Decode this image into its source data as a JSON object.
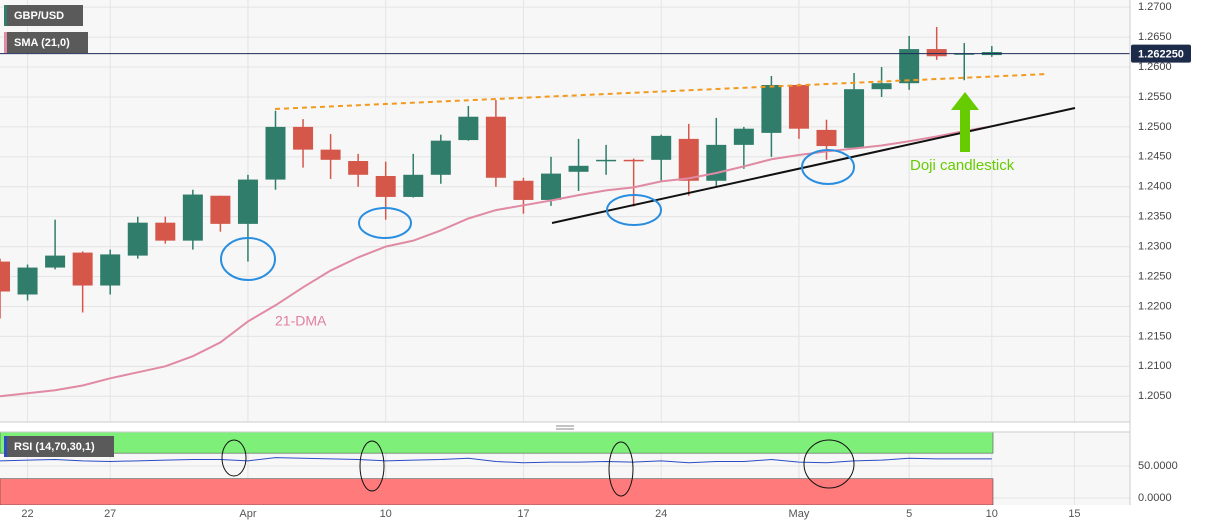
{
  "chart_data": [
    {
      "type": "candlestick",
      "legend": [
        "GBP/USD",
        "SMA (21,0)"
      ],
      "annotations": [
        "21-DMA",
        "Doji candlestick"
      ],
      "current_price": {
        "value": 1.26225,
        "label": "1.262250"
      },
      "categories": [
        null,
        "22",
        null,
        null,
        "27",
        null,
        null,
        null,
        null,
        "Apr",
        null,
        null,
        null,
        null,
        "10",
        null,
        null,
        null,
        null,
        "17",
        null,
        null,
        null,
        null,
        "24",
        null,
        null,
        null,
        null,
        "May",
        null,
        null,
        null,
        "5",
        null,
        null,
        "10",
        null,
        null,
        "15",
        null
      ],
      "open": [
        1.2275,
        1.222,
        1.2265,
        1.229,
        1.2235,
        1.2285,
        1.234,
        1.231,
        1.2385,
        1.2338,
        1.2412,
        1.25,
        1.2462,
        1.2443,
        1.2418,
        1.2383,
        1.242,
        1.2478,
        1.2517,
        1.241,
        1.2378,
        1.2425,
        1.2443,
        1.2445,
        1.2445,
        1.248,
        1.241,
        1.247,
        1.249,
        1.257,
        1.2495,
        1.2465,
        1.2563,
        1.2573,
        1.263,
        1.2622,
        1.262,
        null,
        null,
        null,
        null
      ],
      "high": [
        1.228,
        1.227,
        1.2345,
        1.2292,
        1.2295,
        1.235,
        1.235,
        1.2395,
        1.2385,
        1.242,
        1.2527,
        1.2513,
        1.2488,
        1.2455,
        1.2442,
        1.2455,
        1.2487,
        1.2535,
        1.2545,
        1.2415,
        1.245,
        1.248,
        1.247,
        1.2447,
        1.2487,
        1.2505,
        1.2515,
        1.25,
        1.2585,
        1.2572,
        1.2512,
        1.259,
        1.26,
        1.2652,
        1.2667,
        1.264,
        1.2635,
        null,
        null,
        null,
        null
      ],
      "low": [
        1.218,
        1.221,
        1.2262,
        1.219,
        1.222,
        1.228,
        1.2305,
        1.2295,
        1.2325,
        1.2275,
        1.2395,
        1.2432,
        1.2413,
        1.24,
        1.2345,
        1.2382,
        1.2405,
        1.2477,
        1.24,
        1.2355,
        1.2368,
        1.2393,
        1.242,
        1.2367,
        1.241,
        1.2385,
        1.24,
        1.243,
        1.245,
        1.248,
        1.2445,
        1.2465,
        1.255,
        1.2562,
        1.2612,
        1.2578,
        1.2617,
        null,
        null,
        null,
        null
      ],
      "close": [
        1.2225,
        1.2265,
        1.2285,
        1.2235,
        1.2287,
        1.234,
        1.231,
        1.2387,
        1.2338,
        1.2412,
        1.25,
        1.2462,
        1.2445,
        1.242,
        1.2383,
        1.242,
        1.2477,
        1.2517,
        1.2415,
        1.2378,
        1.2422,
        1.2435,
        1.2445,
        1.2443,
        1.2485,
        1.241,
        1.247,
        1.2497,
        1.257,
        1.2497,
        1.2468,
        1.2563,
        1.2573,
        1.263,
        1.2618,
        1.2623,
        1.2625,
        null,
        null,
        null,
        null
      ],
      "up_color": "#2f7d6a",
      "down_color": "#d4574a",
      "series": [
        {
          "name": "SMA (21,0)",
          "color": "#e08aa3",
          "values": [
            1.205,
            1.2055,
            1.206,
            1.2068,
            1.208,
            1.209,
            1.21,
            1.2117,
            1.214,
            1.2175,
            1.2202,
            1.2232,
            1.226,
            1.2282,
            1.23,
            1.231,
            1.2327,
            1.2347,
            1.2361,
            1.2369,
            1.2377,
            1.2386,
            1.2394,
            1.2399,
            1.2409,
            1.2414,
            1.2423,
            1.2434,
            1.2446,
            1.2453,
            1.2459,
            1.2464,
            1.2469,
            1.2476,
            1.2484,
            1.2493,
            1.2501,
            null,
            null,
            null,
            null
          ]
        }
      ],
      "ylim": [
        1.2007,
        1.2712
      ],
      "yticks": [
        {
          "value": 1.27,
          "label": "1.2700"
        },
        {
          "value": 1.265,
          "label": "1.2650"
        },
        {
          "value": 1.26,
          "label": "1.2600"
        },
        {
          "value": 1.255,
          "label": "1.2550"
        },
        {
          "value": 1.25,
          "label": "1.2500"
        },
        {
          "value": 1.245,
          "label": "1.2450"
        },
        {
          "value": 1.24,
          "label": "1.2400"
        },
        {
          "value": 1.235,
          "label": "1.2350"
        },
        {
          "value": 1.23,
          "label": "1.2300"
        },
        {
          "value": 1.225,
          "label": "1.2250"
        },
        {
          "value": 1.22,
          "label": "1.2200"
        },
        {
          "value": 1.215,
          "label": "1.2150"
        },
        {
          "value": 1.21,
          "label": "1.2100"
        },
        {
          "value": 1.205,
          "label": "1.2050"
        }
      ],
      "grid": true
    },
    {
      "type": "line",
      "legend": [
        "RSI (14,70,30,1)"
      ],
      "upper": 70,
      "lower": 30,
      "upper_color": "#7ef07a",
      "lower_color": "#ff7b7b",
      "series": [
        {
          "name": "RSI (14,70,30,1)",
          "color": "#2b4cc4",
          "values": [
            58,
            59,
            60,
            58,
            57,
            58,
            59,
            60,
            60,
            58,
            63,
            62,
            61,
            60,
            58,
            59,
            60,
            62,
            57,
            55,
            56,
            56,
            57,
            56,
            58,
            55,
            57,
            57,
            60,
            56,
            55,
            58,
            59,
            62,
            61,
            61,
            61,
            null,
            null,
            null,
            null
          ]
        }
      ],
      "ylim": [
        -11,
        103
      ],
      "yticks": [
        {
          "value": 50,
          "label": "50.0000"
        },
        {
          "value": 0,
          "label": "0.0000"
        }
      ],
      "grid": true
    }
  ]
}
